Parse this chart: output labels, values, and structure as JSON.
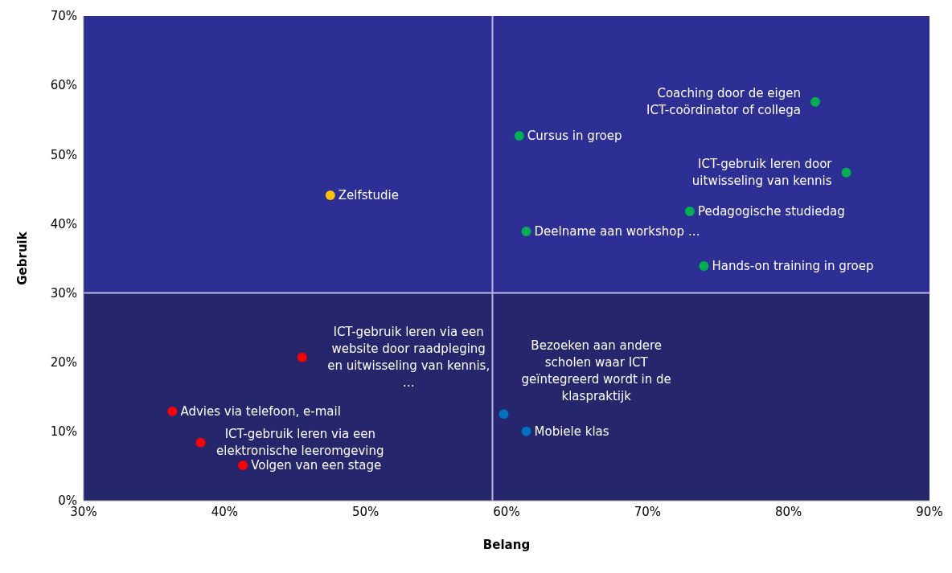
{
  "chart_data": {
    "type": "scatter",
    "xlabel": "Belang",
    "ylabel": "Gebruik",
    "xlim": [
      30,
      90
    ],
    "xticks": [
      {
        "value": 30,
        "label": "30%"
      },
      {
        "value": 40,
        "label": "40%"
      },
      {
        "value": 50,
        "label": "50%"
      },
      {
        "value": 60,
        "label": "60%"
      },
      {
        "value": 70,
        "label": "70%"
      },
      {
        "value": 80,
        "label": "80%"
      },
      {
        "value": 90,
        "label": "90%"
      }
    ],
    "ylim": [
      0,
      70
    ],
    "yticks": [
      {
        "value": 0,
        "label": "0%"
      },
      {
        "value": 10,
        "label": "10%"
      },
      {
        "value": 20,
        "label": "20%"
      },
      {
        "value": 30,
        "label": "30%"
      },
      {
        "value": 40,
        "label": "40%"
      },
      {
        "value": 50,
        "label": "50%"
      },
      {
        "value": 60,
        "label": "60%"
      },
      {
        "value": 70,
        "label": "70%"
      }
    ],
    "grid": false,
    "legend": false,
    "marker": "circle",
    "bands": [
      {
        "axis": "y",
        "from": 30,
        "to": 70,
        "color": "#2e2f94"
      },
      {
        "axis": "y",
        "from": 0,
        "to": 30,
        "color": "#25266b"
      }
    ],
    "ref_lines": [
      {
        "axis": "x",
        "value": 59,
        "color": "#b8b8e0"
      },
      {
        "axis": "y",
        "value": 30,
        "color": "#b8b8e0"
      }
    ],
    "series": [
      {
        "color": "#ffc000",
        "x": [
          47.5
        ],
        "values": [
          44.1
        ],
        "value_labels": [
          "Zelfstudie"
        ]
      },
      {
        "color": "#00b050",
        "x": [
          81.9,
          60.9,
          84.1,
          73.0,
          61.4,
          74.0
        ],
        "values": [
          57.6,
          52.7,
          47.4,
          41.8,
          38.9,
          33.9
        ],
        "value_labels": [
          "Coaching door de eigen\nICT-coördinator of collega",
          "Cursus in groep",
          "ICT-gebruik leren door\nuitwisseling  van kennis",
          "Pedagogische studiedag",
          "Deelname aan workshop …",
          "Hands-on training in groep"
        ]
      },
      {
        "color": "#ff0000",
        "x": [
          45.5,
          36.3,
          38.3,
          41.3
        ],
        "values": [
          20.7,
          12.9,
          8.4,
          5.1
        ],
        "value_labels": [
          "ICT-gebruik leren via een\nwebsite door raadpleging\nen uitwisseling  van kennis,\n…",
          "Advies via telefoon, e-mail",
          "ICT-gebruik leren via een\nelektronische leeromgeving",
          "Volgen van een stage"
        ]
      },
      {
        "color": "#0070c0",
        "x": [
          59.8,
          61.4
        ],
        "values": [
          12.5,
          10.0
        ],
        "value_labels": [
          "Bezoeken aan andere\nscholen waar ICT\ngeïntegreerd wordt in de\nklaspraktijk",
          "Mobiele klas"
        ]
      }
    ]
  }
}
